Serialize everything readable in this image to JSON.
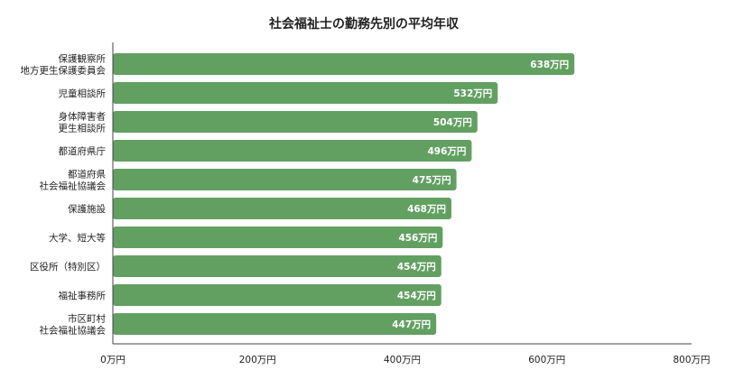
{
  "chart_data": {
    "type": "bar",
    "orientation": "horizontal",
    "title": "社会福祉士の勤務先別の平均年収",
    "categories": [
      [
        "保護観察所",
        "地方更生保護委員会"
      ],
      [
        "児童相談所"
      ],
      [
        "身体障害者",
        "更生相談所"
      ],
      [
        "都道府県庁"
      ],
      [
        "都道府県",
        "社会福祉協議会"
      ],
      [
        "保護施設"
      ],
      [
        "大学、短大等"
      ],
      [
        "区役所（特別区）"
      ],
      [
        "福祉事務所"
      ],
      [
        "市区町村",
        "社会福祉協議会"
      ]
    ],
    "values": [
      638,
      532,
      504,
      496,
      475,
      468,
      456,
      454,
      454,
      447
    ],
    "data_labels": [
      "638万円",
      "532万円",
      "504万円",
      "496万円",
      "475万円",
      "468万円",
      "456万円",
      "454万円",
      "454万円",
      "447万円"
    ],
    "xlim": [
      0,
      800
    ],
    "xticks": [
      0,
      200,
      400,
      600,
      800
    ],
    "xtick_labels": [
      "0万円",
      "200万円",
      "400万円",
      "600万円",
      "800万円"
    ],
    "xlabel": "",
    "ylabel": "",
    "grid": false,
    "bar_color": "#62a062"
  }
}
